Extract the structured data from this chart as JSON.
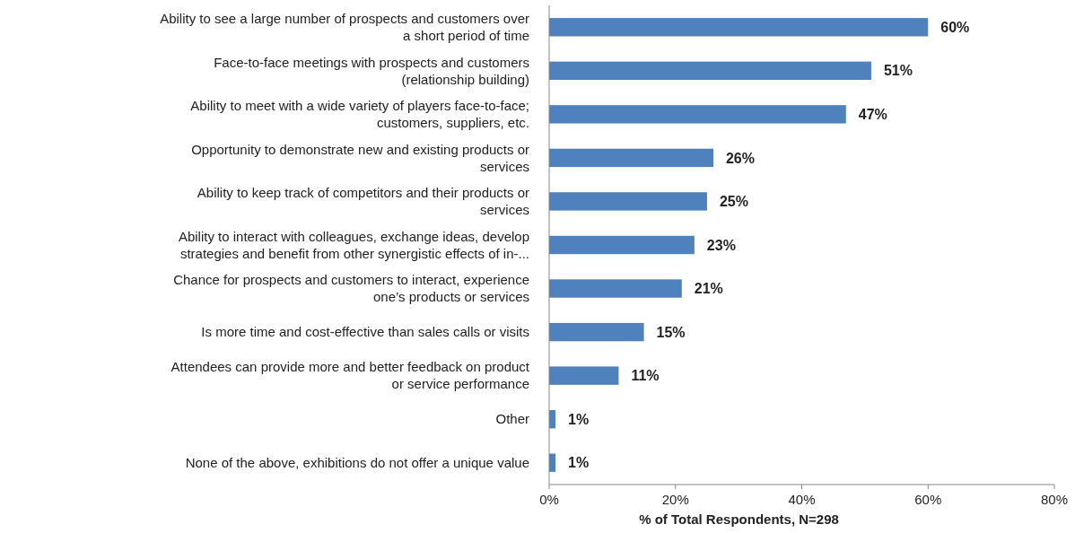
{
  "chart_data": {
    "type": "bar",
    "orientation": "horizontal",
    "xlabel": "% of Total Respondents, N=298",
    "categories": [
      "Ability to see a large number of prospects and customers over\na short period of time",
      "Face-to-face meetings with prospects and customers\n(relationship building)",
      "Ability to meet with a wide variety of players face-to-face;\ncustomers, suppliers, etc.",
      "Opportunity to demonstrate new and existing products or\nservices",
      "Ability to keep track of competitors and their products or\nservices",
      "Ability to interact with colleagues, exchange ideas, develop\nstrategies and benefit from other synergistic effects of in-...",
      "Chance for prospects and customers to interact, experience\none’s products or services",
      "Is more time and cost-effective than sales calls or visits",
      "Attendees can provide more and better feedback on product\nor service performance",
      "Other",
      "None of the above, exhibitions do not offer a unique value"
    ],
    "values": [
      60,
      51,
      47,
      26,
      25,
      23,
      21,
      15,
      11,
      1,
      1
    ],
    "value_labels": [
      "60%",
      "51%",
      "47%",
      "26%",
      "25%",
      "23%",
      "21%",
      "15%",
      "11%",
      "1%",
      "1%"
    ],
    "color": "#4f81bd",
    "xlim": [
      0,
      80
    ],
    "xticks": [
      {
        "value": 0,
        "label": "0%"
      },
      {
        "value": 20,
        "label": "20%"
      },
      {
        "value": 40,
        "label": "40%"
      },
      {
        "value": 60,
        "label": "60%"
      },
      {
        "value": 80,
        "label": "80%"
      }
    ],
    "grid": false
  }
}
